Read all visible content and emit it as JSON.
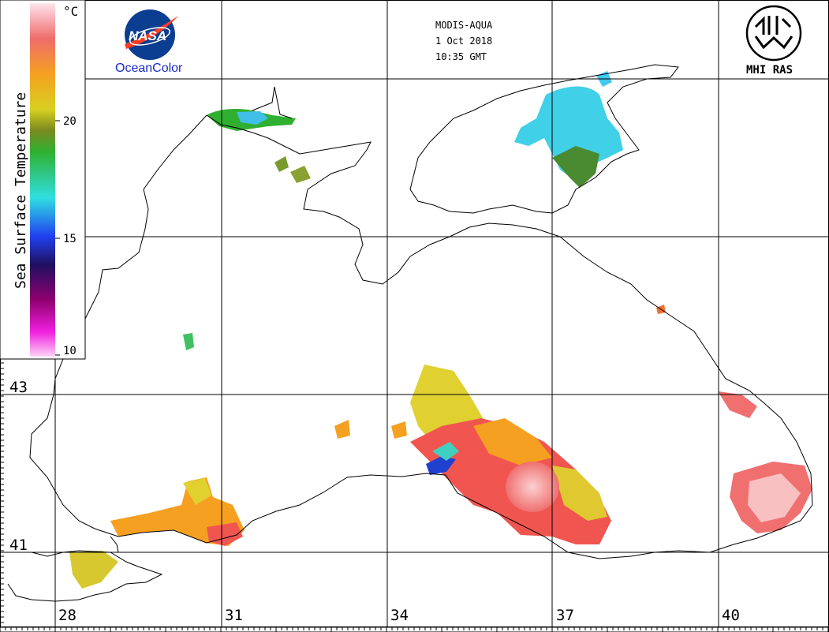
{
  "header": {
    "sensor": "MODIS-AQUA",
    "date": "1 Oct 2018",
    "time": "10:35 GMT"
  },
  "logos": {
    "nasa": "NASA",
    "oceancolor": "OceanColor",
    "mhi": "MHI RAS"
  },
  "colorbar": {
    "title": "Sea Surface Temperature",
    "unit": "°C",
    "ticks": [
      "20",
      "15",
      "10"
    ],
    "range": [
      10,
      25
    ]
  },
  "axes": {
    "longitude_labels": [
      "28",
      "31",
      "34",
      "37",
      "40"
    ],
    "latitude_labels": [
      "43",
      "41"
    ]
  },
  "colors": {
    "sst_warm": "#f05550",
    "sst_hot": "#f8b8b8",
    "sst_orange": "#f5a020",
    "sst_yellow": "#e0d828",
    "sst_olive": "#8a9a30",
    "sst_green": "#30b030",
    "sst_cyan": "#40d8e8",
    "sst_blue": "#2070f0",
    "coastline": "#000000",
    "grid": "#000000",
    "nasa_blue": "#0b3d91",
    "nasa_red": "#fc3d21",
    "oceancolor_text": "#1a2acc"
  }
}
